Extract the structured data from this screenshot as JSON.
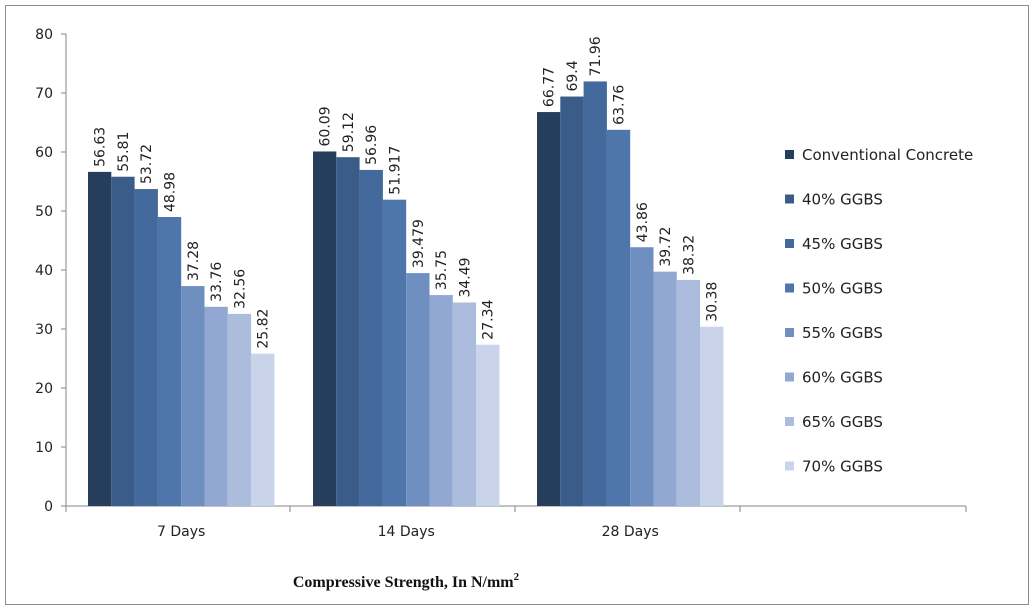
{
  "chart_data": {
    "type": "bar",
    "categories": [
      "7 Days",
      "14 Days",
      "28 Days"
    ],
    "series": [
      {
        "name": "Conventional Concrete",
        "color": "#263e5c",
        "values": [
          56.63,
          60.09,
          66.77
        ],
        "labels": [
          "56.63",
          "60.09",
          "66.77"
        ]
      },
      {
        "name": "40% GGBS",
        "color": "#3a5c89",
        "values": [
          55.81,
          59.12,
          69.4
        ],
        "labels": [
          "55.81",
          "59.12",
          "69.4"
        ]
      },
      {
        "name": "45% GGBS",
        "color": "#44699c",
        "values": [
          53.72,
          56.96,
          71.96
        ],
        "labels": [
          "53.72",
          "56.96",
          "71.96"
        ]
      },
      {
        "name": "50% GGBS",
        "color": "#4e76ab",
        "values": [
          48.98,
          51.917,
          63.76
        ],
        "labels": [
          "48.98",
          "51.917",
          "63.76"
        ]
      },
      {
        "name": "55% GGBS",
        "color": "#6f8fc0",
        "values": [
          37.28,
          39.479,
          43.86
        ],
        "labels": [
          "37.28",
          "39.479",
          "43.86"
        ]
      },
      {
        "name": "60% GGBS",
        "color": "#92a8d2",
        "values": [
          33.76,
          35.75,
          39.72
        ],
        "labels": [
          "33.76",
          "35.75",
          "39.72"
        ]
      },
      {
        "name": "65% GGBS",
        "color": "#acbcdc",
        "values": [
          32.56,
          34.49,
          38.32
        ],
        "labels": [
          "32.56",
          "34.49",
          "38.32"
        ]
      },
      {
        "name": "70% GGBS",
        "color": "#c9d3e9",
        "values": [
          25.82,
          27.34,
          30.38
        ],
        "labels": [
          "25.82",
          "27.34",
          "30.38"
        ]
      }
    ],
    "xlabel": "Compressive  Strength, In N/mm",
    "xlabel_superscript": "2",
    "ylabel": "",
    "ylim": [
      0,
      80
    ],
    "yticks": [
      "0",
      "10",
      "20",
      "30",
      "40",
      "50",
      "60",
      "70",
      "80"
    ],
    "grid": false,
    "legend_position": "right"
  }
}
